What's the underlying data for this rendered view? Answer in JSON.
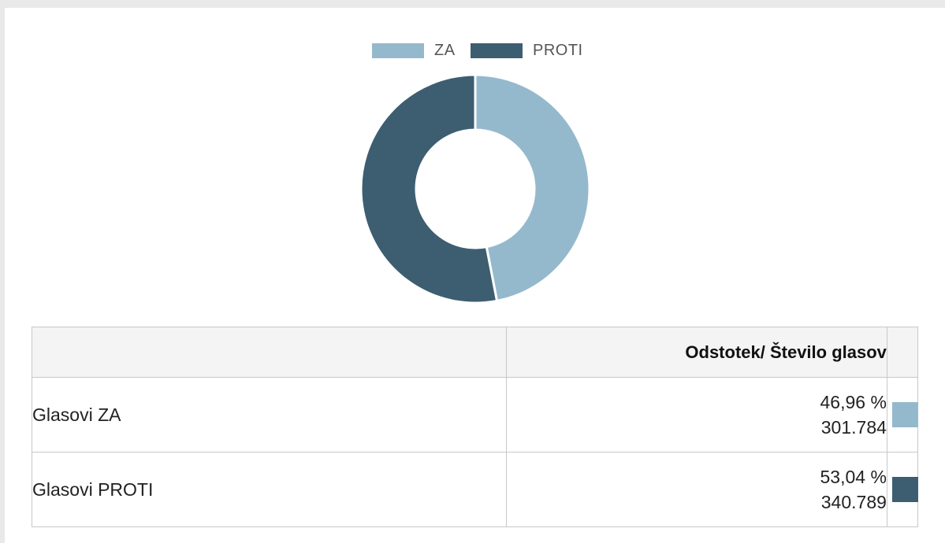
{
  "chart_data": {
    "type": "pie",
    "donut": true,
    "legend": {
      "position": "top",
      "items": [
        "ZA",
        "PROTI"
      ]
    },
    "series": [
      {
        "name": "ZA",
        "value": 46.96,
        "color": "#95b9cc"
      },
      {
        "name": "PROTI",
        "value": 53.04,
        "color": "#3d5e71"
      }
    ]
  },
  "table": {
    "header": {
      "label": "",
      "value": "Odstotek/ Število glasov"
    },
    "rows": [
      {
        "label": "Glasovi ZA",
        "percent": "46,96 %",
        "count": "301.784",
        "color": "#95b9cc"
      },
      {
        "label": "Glasovi PROTI",
        "percent": "53,04 %",
        "count": "340.789",
        "color": "#3d5e71"
      }
    ]
  }
}
